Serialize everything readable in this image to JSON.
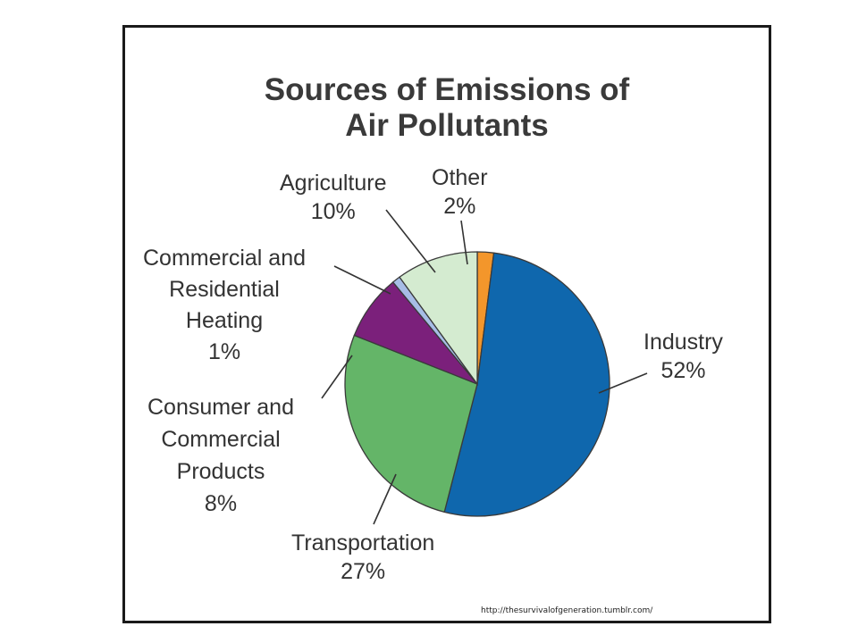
{
  "chart_data": {
    "type": "pie",
    "title_lines": [
      "Sources of Emissions of",
      "Air Pollutants"
    ],
    "legend": "none",
    "slices": [
      {
        "key": "other",
        "label_lines": [
          "Other"
        ],
        "percent_label": "2%",
        "value": 2,
        "color": "#f3962b"
      },
      {
        "key": "industry",
        "label_lines": [
          "Industry"
        ],
        "percent_label": "52%",
        "value": 52,
        "color": "#0f67ad"
      },
      {
        "key": "transportation",
        "label_lines": [
          "Transportation"
        ],
        "percent_label": "27%",
        "value": 27,
        "color": "#64b568"
      },
      {
        "key": "consumer",
        "label_lines": [
          "Consumer and",
          "Commercial",
          "Products"
        ],
        "percent_label": "8%",
        "value": 8,
        "color": "#7b207b"
      },
      {
        "key": "heating",
        "label_lines": [
          "Commercial and",
          "Residential",
          "Heating"
        ],
        "percent_label": "1%",
        "value": 1,
        "color": "#a7bde6"
      },
      {
        "key": "agriculture",
        "label_lines": [
          "Agriculture"
        ],
        "percent_label": "10%",
        "value": 10,
        "color": "#d4ebd0"
      }
    ]
  },
  "source": {
    "text": "http://thesurvivalofgeneration.tumblr.com/"
  }
}
